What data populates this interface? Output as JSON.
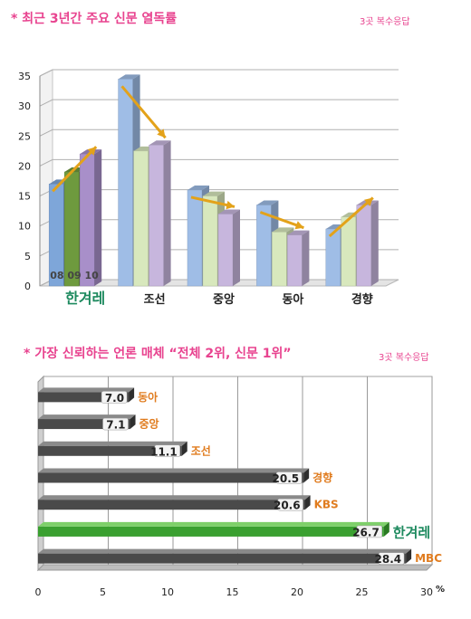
{
  "chart_data": [
    {
      "type": "bar",
      "title": "* 최근 3년간 주요 신문 열독률",
      "note": "3곳 복수응답",
      "categories": [
        "한겨레",
        "조선",
        "중앙",
        "동아",
        "경향"
      ],
      "series": [
        {
          "name": "08",
          "values": [
            17,
            34.5,
            16,
            13.5,
            9.5
          ]
        },
        {
          "name": "09",
          "values": [
            19,
            22.5,
            15,
            9,
            11.5
          ]
        },
        {
          "name": "10",
          "values": [
            22,
            23.5,
            12,
            8.5,
            13.5
          ]
        }
      ],
      "ylim": [
        0,
        35
      ],
      "yticks": [
        "0",
        "5",
        "10",
        "15",
        "20",
        "25",
        "30",
        "35"
      ],
      "colors": {
        "series": [
          "#9fbde6",
          "#d8e8bd",
          "#c7b6dd"
        ],
        "highlight": [
          "#7ea6d9",
          "#6e9a3e",
          "#a88fc9"
        ],
        "arrow": "#e3a21a",
        "highlight_label": "#1e8a5f"
      },
      "highlight_category": "한겨레",
      "series_label_text": "08 09 10"
    },
    {
      "type": "bar",
      "orientation": "horizontal",
      "title": "* 가장 신뢰하는 언론 매체  “전체 2위, 신문 1위”",
      "note": "3곳 복수응답",
      "categories": [
        "동아",
        "중앙",
        "조선",
        "경향",
        "KBS",
        "한겨레",
        "MBC"
      ],
      "values": [
        7.0,
        7.1,
        11.1,
        20.5,
        20.6,
        26.7,
        28.4
      ],
      "value_labels": [
        "7.0",
        "7.1",
        "11.1",
        "20.5",
        "20.6",
        "26.7",
        "28.4"
      ],
      "xlim": [
        0,
        30
      ],
      "xticks": [
        "0",
        "5",
        "10",
        "15",
        "20",
        "25",
        "30"
      ],
      "unit": "%",
      "highlight_category": "한겨레",
      "colors": {
        "bar": "#4a4a4a",
        "highlight": "#3aa030",
        "label": "#e07c1f",
        "highlight_label": "#1e8a5f"
      }
    }
  ]
}
